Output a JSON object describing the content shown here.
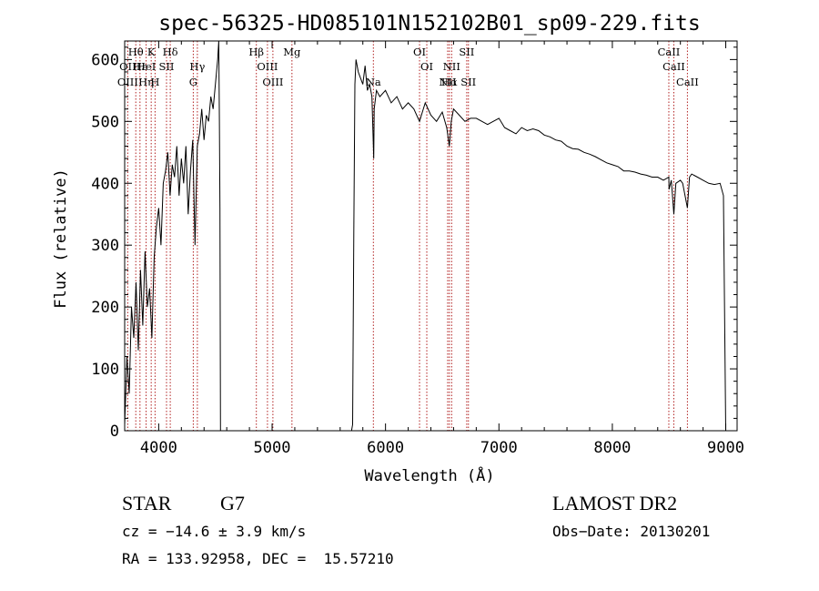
{
  "chart_data": {
    "type": "line",
    "title": "spec-56325-HD085101N152102B01_sp09-229.fits",
    "xlabel": "Wavelength (Å)",
    "ylabel": "Flux (relative)",
    "xlim": [
      3700,
      9100
    ],
    "ylim": [
      0,
      630
    ],
    "xticks": [
      4000,
      5000,
      6000,
      7000,
      8000,
      9000
    ],
    "yticks": [
      0,
      100,
      200,
      300,
      400,
      500,
      600
    ],
    "series": [
      {
        "x": [
          3700,
          3720,
          3740,
          3760,
          3780,
          3800,
          3820,
          3840,
          3860,
          3880,
          3900,
          3920,
          3940,
          3960,
          3980,
          4000,
          4020,
          4040,
          4060,
          4080,
          4100,
          4120,
          4140,
          4160,
          4180,
          4200,
          4220,
          4240,
          4260,
          4280,
          4300,
          4320,
          4340,
          4360,
          4380,
          4400,
          4420,
          4440,
          4460,
          4480,
          4500,
          4520,
          4530,
          4535,
          4540,
          4545,
          5700,
          5710,
          5720,
          5730,
          5740,
          5760,
          5780,
          5800,
          5820,
          5840,
          5860,
          5880,
          5890,
          5896,
          5900,
          5920,
          5950,
          6000,
          6050,
          6100,
          6150,
          6200,
          6250,
          6300,
          6350,
          6400,
          6450,
          6500,
          6540,
          6563,
          6580,
          6600,
          6650,
          6700,
          6750,
          6800,
          6850,
          6900,
          6950,
          7000,
          7050,
          7100,
          7150,
          7200,
          7250,
          7300,
          7350,
          7400,
          7450,
          7500,
          7550,
          7600,
          7650,
          7700,
          7750,
          7800,
          7850,
          7900,
          7950,
          8000,
          8050,
          8100,
          8150,
          8200,
          8250,
          8300,
          8350,
          8400,
          8450,
          8498,
          8500,
          8520,
          8542,
          8560,
          8600,
          8620,
          8662,
          8680,
          8700,
          8750,
          8800,
          8850,
          8900,
          8950,
          8980,
          9000
        ],
        "y": [
          10,
          120,
          60,
          200,
          150,
          240,
          130,
          260,
          170,
          290,
          200,
          230,
          150,
          280,
          330,
          360,
          300,
          400,
          420,
          450,
          380,
          430,
          410,
          460,
          380,
          440,
          400,
          460,
          350,
          420,
          470,
          300,
          460,
          480,
          520,
          470,
          510,
          500,
          540,
          520,
          560,
          600,
          630,
          500,
          360,
          0,
          0,
          10,
          320,
          560,
          600,
          580,
          570,
          560,
          590,
          550,
          560,
          540,
          480,
          440,
          520,
          550,
          540,
          550,
          530,
          540,
          520,
          530,
          520,
          500,
          530,
          510,
          500,
          515,
          490,
          460,
          500,
          520,
          510,
          500,
          505,
          505,
          500,
          495,
          500,
          505,
          490,
          485,
          480,
          490,
          485,
          488,
          485,
          478,
          475,
          470,
          468,
          460,
          456,
          455,
          450,
          447,
          443,
          438,
          433,
          430,
          427,
          420,
          420,
          418,
          415,
          413,
          410,
          410,
          405,
          410,
          390,
          405,
          350,
          400,
          405,
          400,
          360,
          410,
          415,
          410,
          405,
          400,
          398,
          400,
          380,
          0
        ]
      }
    ],
    "lines": [
      {
        "label": "Hθ",
        "x": 3798,
        "row": 0
      },
      {
        "label": "OII",
        "x": 3727,
        "row": 1
      },
      {
        "label": "OIII",
        "x": 3727,
        "row": 2
      },
      {
        "label": "Hε",
        "x": 3835,
        "row": 1
      },
      {
        "label": "Hη",
        "x": 3889,
        "row": 2
      },
      {
        "label": "K",
        "x": 3934,
        "row": 0
      },
      {
        "label": "HeI",
        "x": 3889,
        "row": 1
      },
      {
        "label": "H",
        "x": 3968,
        "row": 2
      },
      {
        "label": "Hδ",
        "x": 4102,
        "row": 0
      },
      {
        "label": "SII",
        "x": 4069,
        "row": 1
      },
      {
        "label": "Hγ",
        "x": 4341,
        "row": 1
      },
      {
        "label": "G",
        "x": 4305,
        "row": 2
      },
      {
        "label": "Hβ",
        "x": 4861,
        "row": 0
      },
      {
        "label": "OIII",
        "x": 4959,
        "row": 1
      },
      {
        "label": "OIII",
        "x": 5007,
        "row": 2
      },
      {
        "label": "Mg",
        "x": 5175,
        "row": 0
      },
      {
        "label": "Na",
        "x": 5893,
        "row": 2
      },
      {
        "label": "OI",
        "x": 6300,
        "row": 0
      },
      {
        "label": "OI",
        "x": 6364,
        "row": 1
      },
      {
        "label": "NII",
        "x": 6548,
        "row": 2
      },
      {
        "label": "Hα",
        "x": 6563,
        "row": 2
      },
      {
        "label": "NII",
        "x": 6583,
        "row": 1
      },
      {
        "label": "SII",
        "x": 6716,
        "row": 0
      },
      {
        "label": "SII",
        "x": 6731,
        "row": 2
      },
      {
        "label": "CaII",
        "x": 8498,
        "row": 0
      },
      {
        "label": "CaII",
        "x": 8542,
        "row": 1
      },
      {
        "label": "CaII",
        "x": 8662,
        "row": 2
      }
    ],
    "line_color": "#b22222"
  },
  "info": {
    "class": "STAR",
    "subclass": "G7",
    "survey": "LAMOST DR2",
    "cz": "cz = −14.6 ± 3.9 km/s",
    "obs_date": "Obs−Date: 20130201",
    "coords": "RA = 133.92958, DEC =  15.57210"
  }
}
